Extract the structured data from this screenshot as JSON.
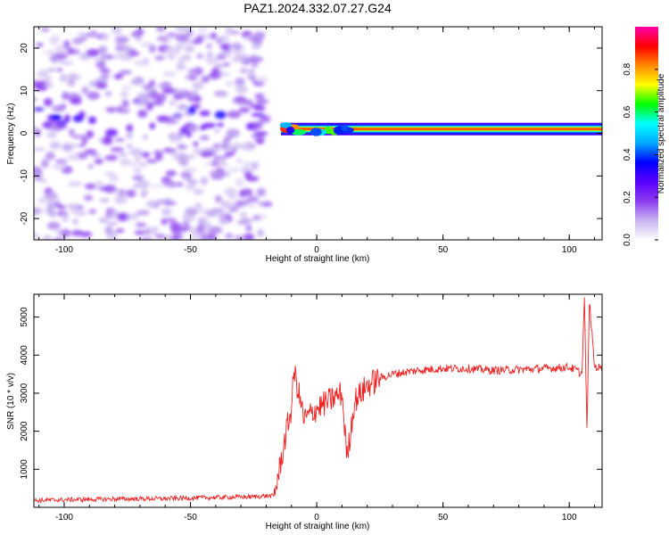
{
  "title": "PAZ1.2024.332.07.27.G24",
  "colorbar": {
    "label": "Normalized spectral amplitude",
    "ticks": [
      "0.0",
      "0.2",
      "0.4",
      "0.6",
      "0.8"
    ],
    "tick_values": [
      0.0,
      0.2,
      0.4,
      0.6,
      0.8
    ],
    "range": [
      0,
      1
    ],
    "colors": [
      "#ffffff",
      "#c8b4f0",
      "#8c3cf0",
      "#5a00ff",
      "#0000ff",
      "#00aaff",
      "#00ffff",
      "#00ff00",
      "#ffff00",
      "#ff8800",
      "#ff0000",
      "#ff00aa"
    ]
  },
  "chart_data": [
    {
      "type": "heatmap",
      "xlabel": "Height of straight line (km)",
      "ylabel": "Frequency (Hz)",
      "xlim": [
        -112,
        113
      ],
      "ylim": [
        -25,
        25
      ],
      "xticks": [
        -100,
        -50,
        0,
        50,
        100
      ],
      "xtick_labels": [
        "-100",
        "-50",
        "0",
        "50",
        "100"
      ],
      "yticks": [
        -20,
        -10,
        0,
        10,
        20
      ],
      "ytick_labels": [
        "-20",
        "-10",
        "0",
        "10",
        "20"
      ],
      "ridge": {
        "frequency": 1.0,
        "x_start": -17,
        "x_end": 113,
        "amplitude": 0.9
      },
      "noise_band": {
        "x_range": [
          -112,
          -20
        ],
        "center_frequency": 4,
        "amplitude": 0.25
      }
    },
    {
      "type": "line",
      "xlabel": "Height of straight line (km)",
      "ylabel": "SNR (10 * v/v)",
      "xlim": [
        -112,
        113
      ],
      "ylim": [
        0,
        5600
      ],
      "xticks": [
        -100,
        -50,
        0,
        50,
        100
      ],
      "xtick_labels": [
        "-100",
        "-50",
        "0",
        "50",
        "100"
      ],
      "yticks": [
        1000,
        2000,
        3000,
        4000,
        5000
      ],
      "ytick_labels": [
        "1000",
        "2000",
        "3000",
        "4000",
        "5000"
      ],
      "color": "#ee2222",
      "series": [
        {
          "x": [
            -112,
            -100,
            -80,
            -60,
            -40,
            -25,
            -20,
            -17,
            -15,
            -12,
            -10,
            -9,
            -5,
            0,
            5,
            10,
            12,
            15,
            20,
            25,
            30,
            40,
            50,
            60,
            70,
            80,
            90,
            100,
            103,
            105,
            106,
            107,
            108,
            110,
            113
          ],
          "values": [
            180,
            200,
            220,
            230,
            260,
            280,
            300,
            300,
            900,
            2000,
            2600,
            3600,
            2300,
            2600,
            2800,
            3000,
            1300,
            2800,
            3200,
            3400,
            3500,
            3600,
            3650,
            3650,
            3600,
            3620,
            3650,
            3680,
            3600,
            3500,
            5500,
            2000,
            5400,
            3700,
            3650
          ]
        }
      ]
    }
  ]
}
